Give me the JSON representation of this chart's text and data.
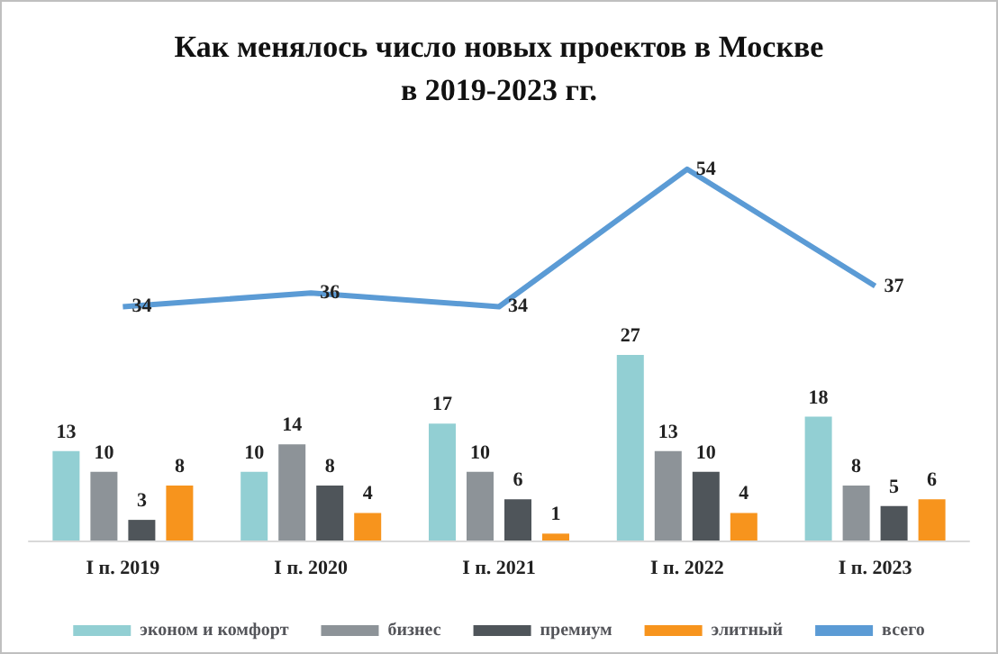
{
  "chart_data": {
    "type": "bar",
    "title": "Как менялось число новых проектов в Москве\nв 2019-2023 гг.",
    "categories": [
      "I п. 2019",
      "I п. 2020",
      "I п. 2021",
      "I п. 2022",
      "I п. 2023"
    ],
    "series": [
      {
        "name": "эконом и комфорт",
        "color": "#92cfd3",
        "values": [
          13,
          10,
          17,
          27,
          18
        ]
      },
      {
        "name": "бизнес",
        "color": "#8d9398",
        "values": [
          10,
          14,
          10,
          13,
          8
        ]
      },
      {
        "name": "премиум",
        "color": "#4f555a",
        "values": [
          3,
          8,
          6,
          10,
          5
        ]
      },
      {
        "name": "элитный",
        "color": "#f7941d",
        "values": [
          8,
          4,
          1,
          4,
          6
        ]
      },
      {
        "name": "всего",
        "type": "line",
        "color": "#5b9bd5",
        "values": [
          34,
          36,
          34,
          54,
          37
        ]
      }
    ],
    "data_labels": true,
    "legend": "bottom",
    "grid": false,
    "marker": "none",
    "line_style": "solid"
  }
}
